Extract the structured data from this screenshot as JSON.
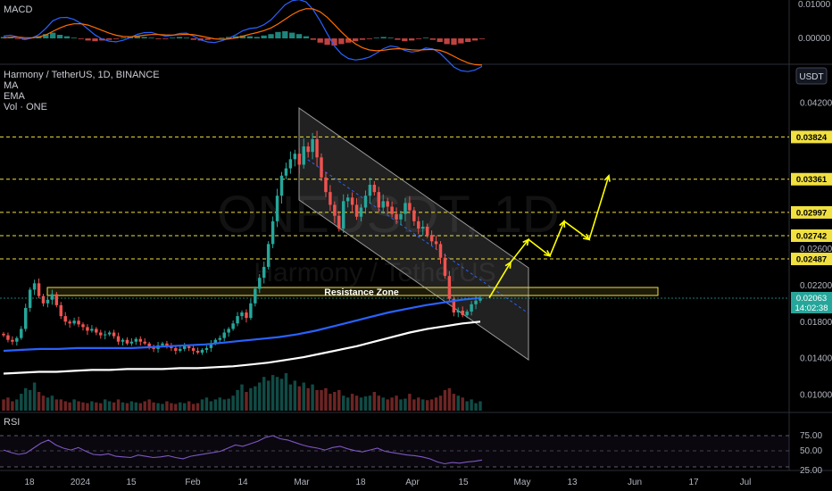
{
  "indicators": {
    "macd_label": "MACD",
    "rsi_label": "RSI",
    "symbol_line": "Harmony / TetherUS, 1D, BINANCE",
    "ma_label": "MA",
    "ema_label": "EMA",
    "vol_label": "Vol · ONE",
    "currency_button": "USDT"
  },
  "watermark": {
    "ticker": "ONEUSDT, 1D",
    "name": "Harmony / TetherUS"
  },
  "annotations": {
    "resistance_zone": "Resistance Zone"
  },
  "colors": {
    "up": "#26a69a",
    "down": "#ef5350",
    "ma": "#2962ff",
    "ema": "#ffffff",
    "target_line": "#f0e040",
    "projection": "#ffff00",
    "macd_line": "#2962ff",
    "signal_line": "#ff6d00",
    "rsi_line": "#7e57c2"
  },
  "chart_data": [
    {
      "type": "line",
      "title": "Harmony / TetherUS, 1D, BINANCE",
      "y_axis_ticks": [
        "0.04200",
        "0.03800",
        "0.02600",
        "0.02200",
        "0.01800",
        "0.01400",
        "0.01000"
      ],
      "x_axis_ticks": [
        "18",
        "2024",
        "15",
        "Feb",
        "14",
        "Mar",
        "18",
        "Apr",
        "15",
        "May",
        "13",
        "Jun",
        "17",
        "Jul"
      ],
      "price_levels": [
        "0.03824",
        "0.03361",
        "0.02997",
        "0.02742",
        "0.02487"
      ],
      "current_price": "0.02063",
      "countdown": "14:02:38",
      "close_prices": [
        0.0165,
        0.016,
        0.0158,
        0.0162,
        0.0172,
        0.0195,
        0.0215,
        0.0222,
        0.0208,
        0.02,
        0.0204,
        0.021,
        0.0198,
        0.0186,
        0.018,
        0.0178,
        0.0181,
        0.0177,
        0.0174,
        0.017,
        0.0172,
        0.0168,
        0.0165,
        0.0166,
        0.0168,
        0.0164,
        0.0158,
        0.016,
        0.0156,
        0.0158,
        0.0161,
        0.0158,
        0.0156,
        0.0152,
        0.015,
        0.0154,
        0.0156,
        0.0153,
        0.0151,
        0.0148,
        0.015,
        0.0153,
        0.0151,
        0.0148,
        0.0146,
        0.0149,
        0.0151,
        0.0156,
        0.016,
        0.0162,
        0.0168,
        0.0172,
        0.0178,
        0.0186,
        0.019,
        0.0184,
        0.02,
        0.0216,
        0.0228,
        0.024,
        0.0265,
        0.029,
        0.0318,
        0.034,
        0.0348,
        0.0358,
        0.0364,
        0.0352,
        0.0372,
        0.0366,
        0.038,
        0.036,
        0.0338,
        0.0322,
        0.0308,
        0.0296,
        0.0282,
        0.0312,
        0.0316,
        0.0308,
        0.0295,
        0.0305,
        0.0318,
        0.033,
        0.0322,
        0.0305,
        0.0312,
        0.0306,
        0.0298,
        0.0292,
        0.0298,
        0.031,
        0.0302,
        0.029,
        0.0282,
        0.0284,
        0.0275,
        0.0268,
        0.0265,
        0.025,
        0.023,
        0.0205,
        0.019,
        0.0192,
        0.0187,
        0.0191,
        0.0199,
        0.0203,
        0.0206
      ],
      "ma_line": [
        0.0148,
        0.0149,
        0.015,
        0.015,
        0.0151,
        0.0151,
        0.0151,
        0.0151,
        0.0152,
        0.0153,
        0.0154,
        0.0155,
        0.0157,
        0.0159,
        0.0161,
        0.0163,
        0.0166,
        0.017,
        0.0175,
        0.018,
        0.0185,
        0.019,
        0.0194,
        0.0198,
        0.0201,
        0.0204,
        0.0206
      ],
      "ema_line": [
        0.0123,
        0.0124,
        0.0125,
        0.0125,
        0.0126,
        0.0127,
        0.0127,
        0.0128,
        0.0128,
        0.0128,
        0.0129,
        0.0129,
        0.013,
        0.0131,
        0.0133,
        0.0135,
        0.0138,
        0.0141,
        0.0145,
        0.0149,
        0.0153,
        0.0158,
        0.0163,
        0.0168,
        0.0172,
        0.0175,
        0.0178,
        0.018
      ],
      "volume_relative": [
        0.3,
        0.35,
        0.25,
        0.3,
        0.45,
        0.6,
        0.55,
        0.75,
        0.5,
        0.4,
        0.35,
        0.4,
        0.3,
        0.3,
        0.25,
        0.22,
        0.3,
        0.25,
        0.22,
        0.2,
        0.25,
        0.22,
        0.2,
        0.3,
        0.25,
        0.22,
        0.3,
        0.22,
        0.2,
        0.25,
        0.22,
        0.2,
        0.25,
        0.3,
        0.22,
        0.2,
        0.18,
        0.25,
        0.2,
        0.18,
        0.22,
        0.2,
        0.25,
        0.18,
        0.2,
        0.3,
        0.35,
        0.25,
        0.3,
        0.35,
        0.3,
        0.32,
        0.4,
        0.55,
        0.7,
        0.5,
        0.6,
        0.65,
        0.75,
        0.9,
        0.8,
        0.95,
        0.9,
        0.85,
        1.0,
        0.7,
        0.8,
        0.65,
        0.75,
        0.6,
        0.7,
        0.55,
        0.55,
        0.6,
        0.45,
        0.5,
        0.55,
        0.4,
        0.35,
        0.45,
        0.4,
        0.35,
        0.38,
        0.4,
        0.5,
        0.4,
        0.35,
        0.3,
        0.35,
        0.4,
        0.3,
        0.32,
        0.45,
        0.3,
        0.35,
        0.3,
        0.28,
        0.3,
        0.35,
        0.4,
        0.55,
        0.6,
        0.45,
        0.4,
        0.35,
        0.25,
        0.3,
        0.2,
        0.25
      ],
      "projection_path": [
        0.0206,
        0.0245,
        0.027,
        0.0252,
        0.029,
        0.027,
        0.034,
        0.0382
      ]
    },
    {
      "type": "bar",
      "title": "MACD",
      "y_axis_ticks": [
        "0.01000",
        "0.00000"
      ],
      "histogram_relative": [
        0.2,
        0.1,
        -0.1,
        -0.2,
        0.1,
        0.3,
        0.6,
        0.8,
        0.5,
        0.3,
        0.1,
        -0.1,
        -0.3,
        -0.4,
        -0.3,
        -0.2,
        -0.1,
        0.1,
        0.2,
        0.3,
        0.2,
        0.1,
        -0.1,
        -0.1,
        0.1,
        0.2,
        0.1,
        -0.2,
        -0.3,
        -0.2,
        -0.1,
        0.1,
        0.2,
        0.3,
        0.4,
        0.3,
        0.2,
        0.4,
        0.6,
        0.9,
        1.0,
        0.8,
        0.6,
        0.3,
        -0.2,
        -0.6,
        -0.9,
        -1.0,
        -0.8,
        -0.6,
        -0.4,
        -0.2,
        -0.1,
        0.1,
        0.2,
        0.1,
        -0.2,
        -0.4,
        -0.3,
        -0.1,
        0.1,
        -0.2,
        -0.5,
        -0.8,
        -0.9,
        -0.7,
        -0.5,
        -0.3,
        -0.1
      ]
    },
    {
      "type": "line",
      "title": "RSI",
      "y_axis_ticks": [
        "75.00",
        "50.00",
        "25.00"
      ],
      "rsi_values": [
        52,
        48,
        45,
        47,
        55,
        63,
        68,
        60,
        55,
        52,
        56,
        50,
        45,
        44,
        46,
        42,
        41,
        40,
        44,
        42,
        40,
        41,
        43,
        40,
        38,
        42,
        44,
        46,
        48,
        50,
        55,
        60,
        58,
        62,
        66,
        72,
        75,
        70,
        68,
        64,
        60,
        57,
        55,
        52,
        56,
        58,
        54,
        51,
        49,
        52,
        55,
        50,
        48,
        46,
        44,
        43,
        41,
        38,
        33,
        30,
        32,
        31,
        33,
        34,
        36
      ]
    }
  ]
}
